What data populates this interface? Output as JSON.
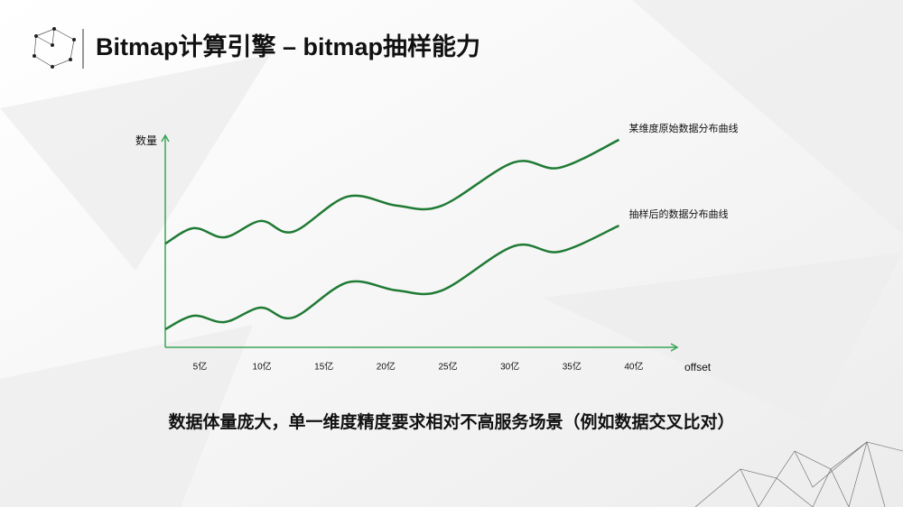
{
  "chart_data": {
    "type": "line",
    "title": "Bitmap计算引擎 – bitmap抽样能力",
    "caption": "数据体量庞大，单一维度精度要求相对不高服务场景（例如数据交叉比对）",
    "x_label": "offset",
    "y_label": "数量",
    "x": [
      2.2,
      4.5,
      7.0,
      9.9,
      12.5,
      16.9,
      20.9,
      24.5,
      30.3,
      34.0,
      38.8
    ],
    "xlim": [
      2.2,
      43.5
    ],
    "xticks": [
      {
        "value": 5,
        "label": "5亿"
      },
      {
        "value": 10,
        "label": "10亿"
      },
      {
        "value": 15,
        "label": "15亿"
      },
      {
        "value": 20,
        "label": "20亿"
      },
      {
        "value": 25,
        "label": "25亿"
      },
      {
        "value": 30,
        "label": "30亿"
      },
      {
        "value": 35,
        "label": "35亿"
      },
      {
        "value": 40,
        "label": "40亿"
      }
    ],
    "ylim": [
      0,
      100
    ],
    "series": [
      {
        "name": "某维度原始数据分布曲线",
        "color": "#1f7a34",
        "values": [
          48.9,
          56.2,
          51.9,
          59.6,
          54.5,
          71.1,
          66.8,
          66.8,
          87.2,
          84.7,
          97.9
        ]
      },
      {
        "name": "抽样后的数据分布曲线",
        "color": "#1f7a34",
        "values": [
          8.5,
          14.9,
          11.9,
          18.7,
          14.0,
          30.6,
          26.8,
          26.8,
          47.7,
          45.1,
          57.4
        ]
      }
    ],
    "axis_color": "#3aa655"
  }
}
